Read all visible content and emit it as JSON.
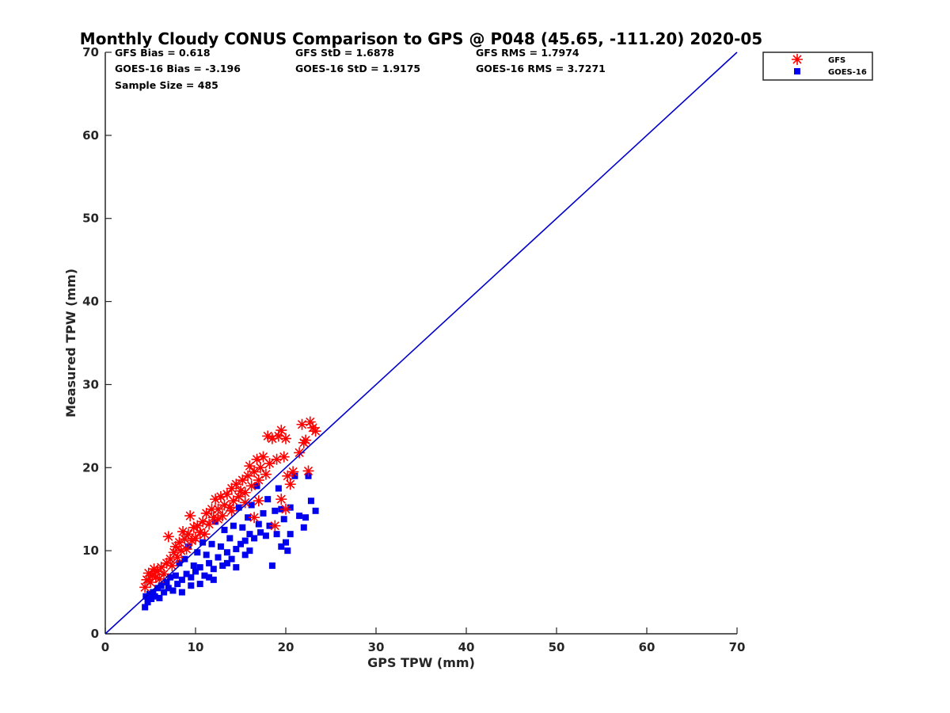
{
  "chart_data": {
    "type": "scatter",
    "title": "Monthly Cloudy CONUS Comparison to GPS @ P048 (45.65, -111.20) 2020-05",
    "xlabel": "GPS TPW (mm)",
    "ylabel": "Measured TPW (mm)",
    "xlim": [
      0,
      70
    ],
    "ylim": [
      0,
      70
    ],
    "xticks": [
      "0",
      "10",
      "20",
      "30",
      "40",
      "50",
      "60",
      "70"
    ],
    "yticks": [
      "0",
      "10",
      "20",
      "30",
      "40",
      "50",
      "60",
      "70"
    ],
    "grid": false,
    "legend_position": "top-right",
    "stats": {
      "gfs_bias": "GFS Bias = 0.618",
      "gfs_std": "GFS StD = 1.6878",
      "gfs_rms": "GFS RMS = 1.7974",
      "goes_bias": "GOES-16 Bias = -3.196",
      "goes_std": "GOES-16 StD = 1.9175",
      "goes_rms": "GOES-16 RMS = 3.7271",
      "sample_size": "Sample Size = 485"
    },
    "reference_line": {
      "x": [
        0,
        70
      ],
      "y": [
        0,
        70
      ],
      "color": "#0000cc"
    },
    "series": [
      {
        "name": "GFS",
        "marker": "asterisk",
        "color": "#ff0000",
        "points": [
          [
            4.4,
            5.6
          ],
          [
            4.6,
            6.5
          ],
          [
            4.8,
            7.3
          ],
          [
            5.0,
            6.2
          ],
          [
            5.2,
            7.0
          ],
          [
            5.4,
            7.8
          ],
          [
            5.6,
            6.8
          ],
          [
            5.8,
            7.5
          ],
          [
            6.0,
            6.6
          ],
          [
            6.2,
            8.0
          ],
          [
            6.5,
            7.2
          ],
          [
            6.8,
            8.5
          ],
          [
            7.0,
            11.7
          ],
          [
            7.2,
            9.0
          ],
          [
            7.4,
            8.2
          ],
          [
            7.6,
            9.8
          ],
          [
            7.8,
            10.5
          ],
          [
            8.0,
            9.2
          ],
          [
            8.2,
            11.0
          ],
          [
            8.4,
            10.0
          ],
          [
            8.6,
            12.3
          ],
          [
            8.8,
            11.4
          ],
          [
            9.0,
            10.2
          ],
          [
            9.2,
            12.0
          ],
          [
            9.4,
            14.2
          ],
          [
            9.6,
            11.2
          ],
          [
            9.8,
            12.8
          ],
          [
            10.0,
            11.5
          ],
          [
            10.2,
            13.0
          ],
          [
            10.5,
            12.2
          ],
          [
            10.8,
            13.5
          ],
          [
            11.0,
            12.0
          ],
          [
            11.2,
            14.5
          ],
          [
            11.5,
            13.2
          ],
          [
            11.8,
            15.0
          ],
          [
            12.0,
            14.0
          ],
          [
            12.2,
            16.2
          ],
          [
            12.5,
            15.0
          ],
          [
            12.8,
            16.5
          ],
          [
            13.0,
            14.2
          ],
          [
            13.2,
            15.5
          ],
          [
            13.5,
            16.8
          ],
          [
            13.8,
            15.2
          ],
          [
            14.0,
            17.5
          ],
          [
            14.2,
            16.0
          ],
          [
            14.5,
            18.0
          ],
          [
            14.8,
            16.5
          ],
          [
            15.0,
            17.2
          ],
          [
            15.2,
            18.5
          ],
          [
            15.5,
            17.0
          ],
          [
            15.8,
            19.0
          ],
          [
            16.0,
            20.2
          ],
          [
            16.2,
            17.8
          ],
          [
            16.5,
            19.5
          ],
          [
            16.8,
            21.0
          ],
          [
            17.0,
            18.5
          ],
          [
            17.2,
            20.0
          ],
          [
            17.5,
            21.3
          ],
          [
            17.8,
            19.2
          ],
          [
            18.0,
            23.8
          ],
          [
            18.2,
            20.5
          ],
          [
            18.5,
            23.5
          ],
          [
            18.8,
            13.0
          ],
          [
            19.0,
            21.0
          ],
          [
            19.2,
            23.8
          ],
          [
            19.5,
            24.5
          ],
          [
            19.8,
            21.3
          ],
          [
            20.0,
            23.5
          ],
          [
            20.2,
            19.0
          ],
          [
            20.5,
            18.0
          ],
          [
            20.8,
            19.5
          ],
          [
            21.5,
            21.8
          ],
          [
            21.8,
            25.2
          ],
          [
            22.0,
            23.0
          ],
          [
            22.2,
            23.3
          ],
          [
            22.5,
            19.6
          ],
          [
            22.7,
            25.5
          ],
          [
            23.0,
            24.8
          ],
          [
            23.3,
            24.4
          ],
          [
            16.5,
            14.0
          ],
          [
            17.0,
            16.0
          ],
          [
            19.5,
            16.2
          ],
          [
            20.0,
            15.0
          ],
          [
            15.5,
            15.8
          ],
          [
            14.0,
            14.8
          ],
          [
            12.5,
            13.8
          ]
        ]
      },
      {
        "name": "GOES-16",
        "marker": "square",
        "color": "#0000ee",
        "points": [
          [
            4.4,
            3.2
          ],
          [
            4.5,
            4.5
          ],
          [
            4.7,
            3.8
          ],
          [
            4.9,
            4.8
          ],
          [
            5.1,
            4.2
          ],
          [
            5.3,
            5.0
          ],
          [
            5.5,
            4.5
          ],
          [
            5.8,
            5.5
          ],
          [
            6.0,
            4.3
          ],
          [
            6.2,
            5.8
          ],
          [
            6.5,
            5.0
          ],
          [
            6.8,
            6.2
          ],
          [
            7.0,
            5.5
          ],
          [
            7.2,
            6.8
          ],
          [
            7.5,
            5.2
          ],
          [
            7.8,
            7.0
          ],
          [
            8.0,
            6.0
          ],
          [
            8.2,
            8.5
          ],
          [
            8.5,
            6.5
          ],
          [
            8.8,
            9.0
          ],
          [
            9.0,
            7.2
          ],
          [
            9.2,
            10.5
          ],
          [
            9.5,
            6.8
          ],
          [
            9.8,
            8.2
          ],
          [
            10.0,
            7.5
          ],
          [
            10.2,
            9.8
          ],
          [
            10.5,
            8.0
          ],
          [
            10.8,
            11.0
          ],
          [
            11.0,
            7.0
          ],
          [
            11.2,
            9.5
          ],
          [
            11.5,
            8.5
          ],
          [
            11.8,
            10.8
          ],
          [
            12.0,
            7.8
          ],
          [
            12.2,
            13.5
          ],
          [
            12.5,
            9.2
          ],
          [
            12.8,
            10.5
          ],
          [
            13.0,
            8.2
          ],
          [
            13.2,
            12.5
          ],
          [
            13.5,
            9.8
          ],
          [
            13.8,
            11.5
          ],
          [
            14.0,
            9.0
          ],
          [
            14.2,
            13.0
          ],
          [
            14.5,
            10.2
          ],
          [
            14.8,
            15.2
          ],
          [
            15.0,
            10.8
          ],
          [
            15.2,
            12.8
          ],
          [
            15.5,
            11.2
          ],
          [
            15.8,
            14.0
          ],
          [
            16.0,
            12.0
          ],
          [
            16.2,
            15.5
          ],
          [
            16.5,
            11.5
          ],
          [
            16.8,
            17.8
          ],
          [
            17.0,
            13.2
          ],
          [
            17.2,
            12.2
          ],
          [
            17.5,
            14.5
          ],
          [
            17.8,
            11.8
          ],
          [
            18.0,
            16.2
          ],
          [
            18.2,
            13.0
          ],
          [
            18.5,
            8.2
          ],
          [
            18.8,
            14.8
          ],
          [
            19.0,
            12.0
          ],
          [
            19.2,
            17.5
          ],
          [
            19.5,
            15.0
          ],
          [
            19.8,
            13.8
          ],
          [
            20.0,
            11.0
          ],
          [
            20.2,
            10.0
          ],
          [
            20.5,
            15.2
          ],
          [
            21.0,
            19.0
          ],
          [
            21.5,
            14.2
          ],
          [
            22.0,
            12.8
          ],
          [
            22.5,
            19.0
          ],
          [
            22.8,
            16.0
          ],
          [
            23.3,
            14.8
          ],
          [
            22.2,
            14.0
          ],
          [
            20.5,
            12.0
          ],
          [
            19.5,
            10.5
          ],
          [
            16.0,
            10.0
          ],
          [
            14.5,
            8.0
          ],
          [
            12.0,
            6.5
          ],
          [
            10.5,
            6.0
          ],
          [
            8.5,
            5.0
          ],
          [
            9.5,
            5.8
          ],
          [
            11.5,
            6.8
          ],
          [
            13.5,
            8.5
          ],
          [
            15.5,
            9.5
          ]
        ]
      }
    ]
  }
}
